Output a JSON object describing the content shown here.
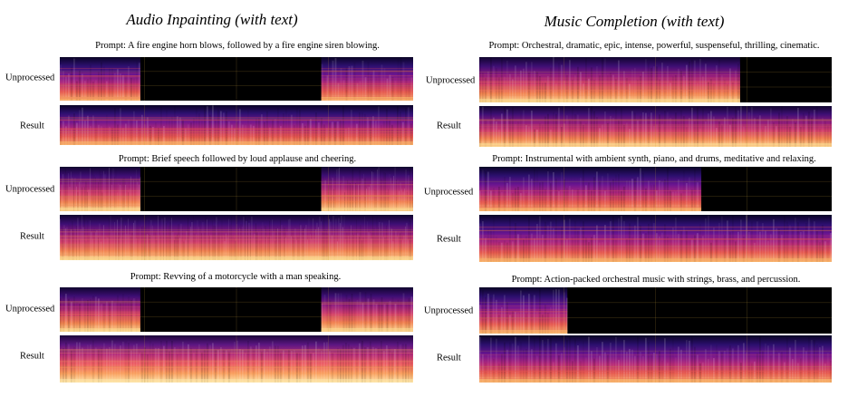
{
  "columns": [
    {
      "title": "Audio Inpainting (with text)",
      "examples": [
        {
          "prompt": "Prompt: A fire engine horn blows, followed by a fire engine siren blowing.",
          "rows": [
            {
              "label": "Unprocessed",
              "type": "inpaint",
              "tone": "cool",
              "texture": "harmonic"
            },
            {
              "label": "Result",
              "type": "full",
              "tone": "cool",
              "texture": "harmonic"
            }
          ]
        },
        {
          "prompt": "Prompt: Brief speech followed by loud applause and cheering.",
          "rows": [
            {
              "label": "Unprocessed",
              "type": "inpaint",
              "tone": "warm",
              "texture": "noise"
            },
            {
              "label": "Result",
              "type": "full",
              "tone": "warm",
              "texture": "noise"
            }
          ]
        },
        {
          "prompt": "Prompt: Revving of a motorcycle with a man speaking.",
          "rows": [
            {
              "label": "Unprocessed",
              "type": "inpaint",
              "tone": "warm",
              "texture": "engine"
            },
            {
              "label": "Result",
              "type": "full",
              "tone": "hot",
              "texture": "engine"
            }
          ]
        }
      ]
    },
    {
      "title": "Music Completion (with text)",
      "examples": [
        {
          "prompt": "Prompt: Orchestral, dramatic, epic, intense, powerful, suspenseful, thrilling, cinematic.",
          "rows": [
            {
              "label": "Unprocessed",
              "type": "complete",
              "keep": 0.74,
              "tone": "warm",
              "texture": "music"
            },
            {
              "label": "Result",
              "type": "full",
              "tone": "warm",
              "texture": "music"
            }
          ]
        },
        {
          "prompt": "Prompt: Instrumental with ambient synth, piano, and drums, meditative and relaxing.",
          "rows": [
            {
              "label": "Unprocessed",
              "type": "complete",
              "keep": 0.63,
              "tone": "cool",
              "texture": "ambient"
            },
            {
              "label": "Result",
              "type": "full",
              "tone": "cool",
              "texture": "ambient"
            }
          ]
        },
        {
          "prompt": "Prompt: Action-packed orchestral music with strings, brass, and percussion.",
          "rows": [
            {
              "label": "Unprocessed",
              "type": "complete",
              "keep": 0.25,
              "tone": "cool",
              "texture": "music"
            },
            {
              "label": "Result",
              "type": "full",
              "tone": "cool",
              "texture": "music"
            }
          ]
        }
      ]
    }
  ]
}
